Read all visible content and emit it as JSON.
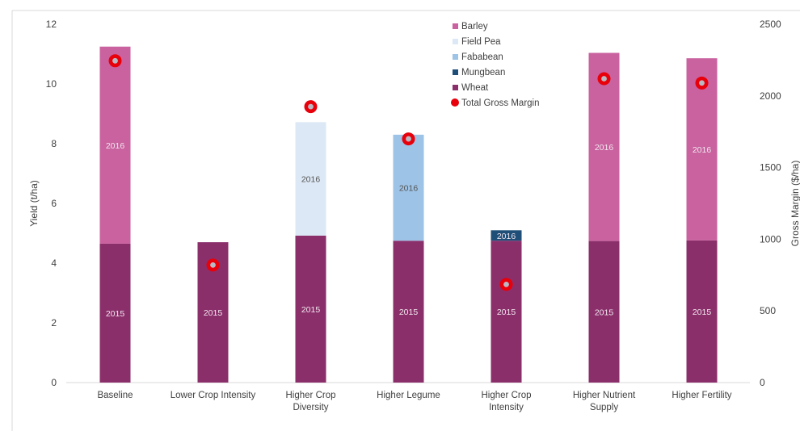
{
  "chart_data": {
    "type": "bar",
    "stacked": true,
    "categories": [
      "Baseline",
      "Lower Crop Intensity",
      [
        "Higher Crop",
        "Diversity"
      ],
      "Higher Legume",
      [
        "Higher Crop",
        "Intensity"
      ],
      [
        "Higher Nutrient",
        "Supply"
      ],
      "Higher Fertility"
    ],
    "ylabel": "Yield (t/ha)",
    "ylim": [
      0,
      12
    ],
    "yticks": [
      0,
      2,
      4,
      6,
      8,
      10,
      12
    ],
    "y2label": "Gross Margin ($/ha)",
    "y2lim": [
      0,
      2500
    ],
    "y2ticks": [
      0,
      500,
      1000,
      1500,
      2000,
      2500
    ],
    "grid": false,
    "legend": {
      "placement": "top-center"
    },
    "series": [
      {
        "name": "Barley",
        "color": "#c9629f",
        "year": "2016",
        "values": [
          6.6,
          null,
          null,
          null,
          null,
          6.3,
          6.1
        ]
      },
      {
        "name": "Field Pea",
        "color": "#dce8f5",
        "year": "2016",
        "values": [
          null,
          null,
          3.8,
          null,
          null,
          null,
          null
        ]
      },
      {
        "name": "Fababean",
        "color": "#9dc3e6",
        "year": "2016",
        "values": [
          null,
          null,
          null,
          3.55,
          null,
          null,
          null
        ]
      },
      {
        "name": "Mungbean",
        "color": "#1f4e79",
        "year": "2016",
        "values": [
          null,
          null,
          null,
          null,
          0.35,
          null,
          null
        ]
      },
      {
        "name": "Wheat",
        "color": "#8b2f6b",
        "year": "2015",
        "values": [
          4.65,
          4.7,
          4.92,
          4.75,
          4.75,
          4.74,
          4.76
        ]
      }
    ],
    "stack_order": [
      "Wheat",
      "Barley",
      "Field Pea",
      "Fababean",
      "Mungbean"
    ],
    "line_series": {
      "name": "Total Gross Margin",
      "axis": "secondary",
      "marker": "circle",
      "color": "#e8000b",
      "values": [
        2245,
        820,
        1925,
        1700,
        685,
        2120,
        2090
      ]
    }
  }
}
